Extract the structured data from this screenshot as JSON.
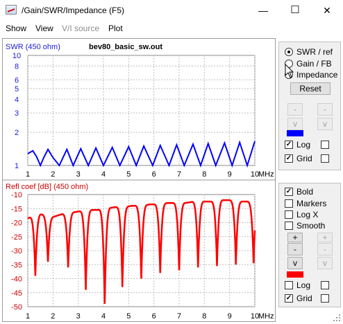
{
  "window": {
    "title": "/Gain/SWR/Impedance (F5)",
    "icon": "chart-icon",
    "min_glyph": "—",
    "max_glyph": "☐",
    "close_glyph": "✕"
  },
  "menu": [
    "Show",
    "View",
    "V/I source",
    "Plot"
  ],
  "top_plot": {
    "title": "bev80_basic_sw.out",
    "ylabel": "SWR (450 ohm)",
    "y_ticks": [
      "10",
      "8",
      "6",
      "5",
      "4",
      "3",
      "2",
      "1"
    ],
    "x_ticks": [
      "1",
      "2",
      "3",
      "4",
      "5",
      "6",
      "7",
      "8",
      "9",
      "10"
    ],
    "x_unit": "MHz",
    "color": "#0000ff"
  },
  "bottom_plot": {
    "ylabel": "Refl coef [dB] (450 ohm)",
    "y_ticks": [
      "-10",
      "-15",
      "-20",
      "-25",
      "-30",
      "-35",
      "-40",
      "-45",
      "-50"
    ],
    "x_ticks": [
      "1",
      "2",
      "3",
      "4",
      "5",
      "6",
      "7",
      "8",
      "9",
      "10"
    ],
    "x_unit": "MHz",
    "color": "#ff0000"
  },
  "chart_data": [
    {
      "type": "line",
      "ylabel": "SWR (450 ohm)",
      "title": "bev80_basic_sw.out",
      "xlabel": "MHz",
      "xlim": [
        1,
        10
      ],
      "ylim": [
        1,
        10
      ],
      "y_scale": "log",
      "grid": true,
      "series": [
        {
          "color": "#0000ff",
          "x": [
            1.0,
            1.2,
            1.35,
            1.5,
            1.65,
            1.8,
            2.0,
            2.25,
            2.55,
            2.8,
            3.1,
            3.4,
            3.7,
            4.0,
            4.35,
            4.65,
            5.0,
            5.3,
            5.6,
            5.95,
            6.25,
            6.6,
            6.9,
            7.2,
            7.55,
            7.85,
            8.15,
            8.45,
            8.8,
            9.1,
            9.4,
            9.7,
            10.0
          ],
          "y": [
            1.28,
            1.36,
            1.2,
            1.0,
            1.2,
            1.4,
            1.18,
            1.0,
            1.4,
            1.0,
            1.42,
            1.0,
            1.44,
            1.0,
            1.46,
            1.0,
            1.48,
            1.0,
            1.5,
            1.0,
            1.52,
            1.0,
            1.54,
            1.0,
            1.56,
            1.0,
            1.58,
            1.0,
            1.6,
            1.0,
            1.62,
            1.0,
            1.66
          ]
        }
      ]
    },
    {
      "type": "line",
      "ylabel": "Refl coef [dB] (450 ohm)",
      "xlabel": "MHz",
      "xlim": [
        1,
        10
      ],
      "ylim": [
        -50,
        -10
      ],
      "grid": true,
      "series": [
        {
          "color": "#ff0000",
          "x": [
            1.0,
            1.25,
            1.5,
            1.75,
            2.0,
            2.35,
            2.7,
            3.05,
            3.4,
            3.75,
            4.1,
            4.45,
            4.8,
            5.15,
            5.5,
            5.85,
            6.2,
            6.55,
            6.9,
            7.25,
            7.6,
            7.95,
            8.3,
            8.65,
            9.0,
            9.35,
            9.7,
            10.0
          ],
          "peaks": [
            -18.5,
            -17.5,
            -17.0,
            -17.5,
            -18.0,
            -17.0,
            -16.5,
            -16.0,
            -15.5,
            -15.5,
            -15.0,
            -14.5,
            -14.5,
            -14.0,
            -14.0,
            -13.5,
            -13.5,
            -13.0,
            -13.0,
            -13.0,
            -12.5,
            -12.5,
            -12.5,
            -12.0,
            -12.0,
            -12.5,
            -12.5,
            -13.0
          ],
          "dips_x": [
            1.3,
            1.8,
            2.6,
            3.3,
            4.05,
            4.75,
            5.5,
            6.25,
            7.0,
            7.75,
            8.5,
            9.25,
            9.95
          ],
          "dips_y": [
            -39.0,
            -34.0,
            -36.0,
            -44.0,
            -49.0,
            -43.0,
            -40.0,
            -38.0,
            -37.0,
            -36.0,
            -35.5,
            -35.0,
            -34.5
          ]
        }
      ]
    }
  ],
  "top_panel": {
    "radios": [
      {
        "label": "SWR / ref",
        "selected": true
      },
      {
        "label": "Gain / FB",
        "selected": false
      },
      {
        "label": "Impedance",
        "selected": false
      }
    ],
    "reset_label": "Reset",
    "arrow_up": "-",
    "arrow_down": "v",
    "swatch_color": "#0000ff",
    "log_label": "Log",
    "log_checked": true,
    "grid_label": "Grid",
    "grid_checked": true,
    "check_mark": "✓"
  },
  "bottom_panel": {
    "bold_label": "Bold",
    "bold_checked": true,
    "markers_label": "Markers",
    "logx_label": "Log X",
    "smooth_label": "Smooth",
    "plus_label": "+",
    "minus_label": "-",
    "down_label": "v",
    "swatch_color": "#ff0000",
    "log_label": "Log",
    "log_checked": false,
    "grid_label": "Grid",
    "grid_checked": true,
    "check_mark": "✓"
  }
}
